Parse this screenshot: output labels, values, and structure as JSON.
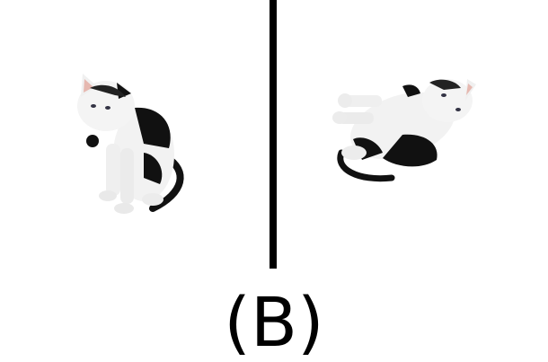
{
  "figure": {
    "label": "(B)",
    "panels": [
      {
        "name": "cat-upright",
        "description_icon": "cat-sitting-icon"
      },
      {
        "name": "cat-tilted",
        "description_icon": "cat-rotated-icon"
      }
    ],
    "colors": {
      "fur_white": "#f2f2f2",
      "patch_black": "#111111",
      "ear_pink": "#e6b8b0",
      "divider": "#000000"
    }
  }
}
